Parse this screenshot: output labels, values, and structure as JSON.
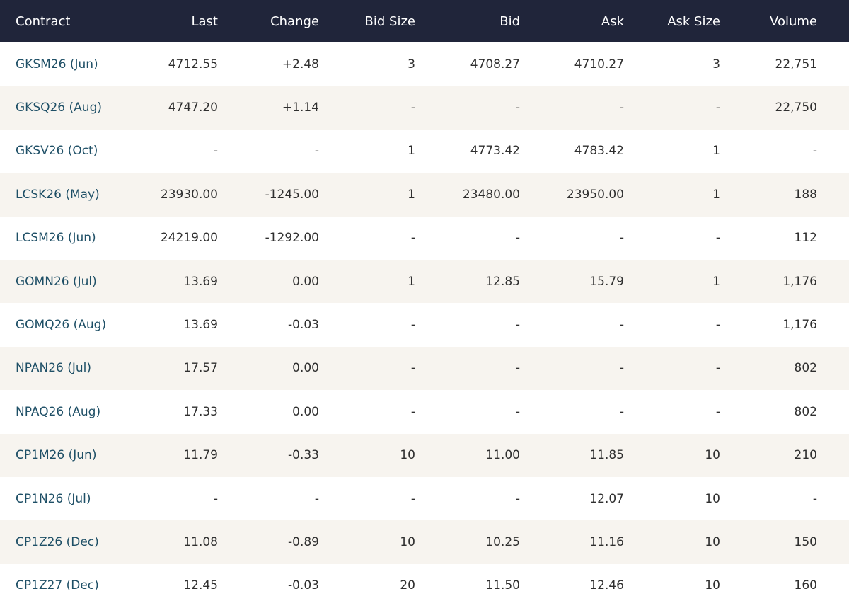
{
  "table": {
    "headers": [
      "Contract",
      "Last",
      "Change",
      "Bid Size",
      "Bid",
      "Ask",
      "Ask Size",
      "Volume"
    ],
    "rows": [
      [
        "GKSM26 (Jun)",
        "4712.55",
        "+2.48",
        "3",
        "4708.27",
        "4710.27",
        "3",
        "22,751"
      ],
      [
        "GKSQ26 (Aug)",
        "4747.20",
        "+1.14",
        "-",
        "-",
        "-",
        "-",
        "22,750"
      ],
      [
        "GKSV26 (Oct)",
        "-",
        "-",
        "1",
        "4773.42",
        "4783.42",
        "1",
        "-"
      ],
      [
        "LCSK26 (May)",
        "23930.00",
        "-1245.00",
        "1",
        "23480.00",
        "23950.00",
        "1",
        "188"
      ],
      [
        "LCSM26 (Jun)",
        "24219.00",
        "-1292.00",
        "-",
        "-",
        "-",
        "-",
        "112"
      ],
      [
        "GOMN26 (Jul)",
        "13.69",
        "0.00",
        "1",
        "12.85",
        "15.79",
        "1",
        "1,176"
      ],
      [
        "GOMQ26 (Aug)",
        "13.69",
        "-0.03",
        "-",
        "-",
        "-",
        "-",
        "1,176"
      ],
      [
        "NPAN26 (Jul)",
        "17.57",
        "0.00",
        "-",
        "-",
        "-",
        "-",
        "802"
      ],
      [
        "NPAQ26 (Aug)",
        "17.33",
        "0.00",
        "-",
        "-",
        "-",
        "-",
        "802"
      ],
      [
        "CP1M26 (Jun)",
        "11.79",
        "-0.33",
        "10",
        "11.00",
        "11.85",
        "10",
        "210"
      ],
      [
        "CP1N26 (Jul)",
        "-",
        "-",
        "-",
        "-",
        "12.07",
        "10",
        "-"
      ],
      [
        "CP1Z26 (Dec)",
        "11.08",
        "-0.89",
        "10",
        "10.25",
        "11.16",
        "10",
        "150"
      ],
      [
        "CP1Z27 (Dec)",
        "12.45",
        "-0.03",
        "20",
        "11.50",
        "12.46",
        "10",
        "160"
      ]
    ]
  }
}
